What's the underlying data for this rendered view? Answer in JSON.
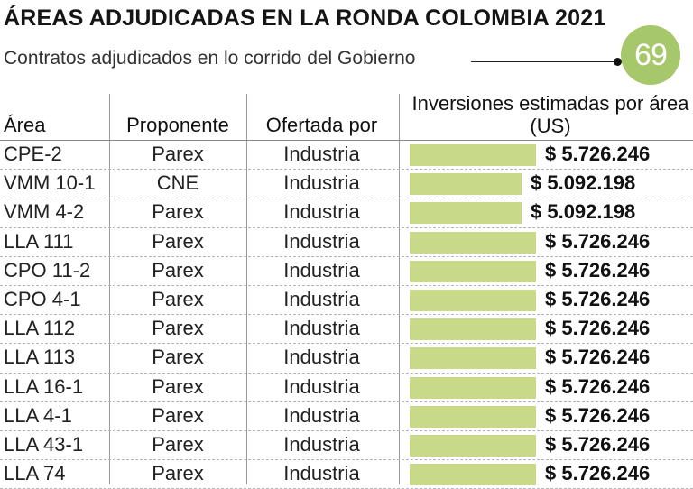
{
  "title": "ÁREAS ADJUDICADAS EN LA RONDA COLOMBIA 2021",
  "subtitle": "Contratos adjudicados en lo corrido del Gobierno",
  "badge_value": "69",
  "colors": {
    "bar": "#c8d98a",
    "badge": "#a6c86a"
  },
  "columns": {
    "area": "Área",
    "proponente": "Proponente",
    "ofertada_por": "Ofertada por",
    "inversiones": "Inversiones estimadas por área (US)"
  },
  "chart_data": {
    "type": "bar",
    "orientation": "horizontal",
    "title": "ÁREAS ADJUDICADAS EN LA RONDA COLOMBIA 2021",
    "subtitle": "Contratos adjudicados en lo corrido del Gobierno",
    "value_label": "Inversiones estimadas por área (US)",
    "categories": [
      "CPE-2",
      "VMM 10-1",
      "VMM 4-2",
      "LLA 111",
      "CPO 11-2",
      "CPO 4-1",
      "LLA 112",
      "LLA 113",
      "LLA 16-1",
      "LLA 4-1",
      "LLA 43-1",
      "LLA 74"
    ],
    "values": [
      5726246,
      5092198,
      5092198,
      5726246,
      5726246,
      5726246,
      5726246,
      5726246,
      5726246,
      5726246,
      5726246,
      5726246
    ],
    "value_labels": [
      "$ 5.726.246",
      "$ 5.092.198",
      "$ 5.092.198",
      "$ 5.726.246",
      "$ 5.726.246",
      "$ 5.726.246",
      "$ 5.726.246",
      "$ 5.726.246",
      "$ 5.726.246",
      "$ 5.726.246",
      "$ 5.726.246",
      "$ 5.726.246"
    ],
    "proponente": [
      "Parex",
      "CNE",
      "Parex",
      "Parex",
      "Parex",
      "Parex",
      "Parex",
      "Parex",
      "Parex",
      "Parex",
      "Parex",
      "Parex"
    ],
    "ofertada_por": [
      "Industria",
      "Industria",
      "Industria",
      "Industria",
      "Industria",
      "Industria",
      "Industria",
      "Industria",
      "Industria",
      "Industria",
      "Industria",
      "Industria"
    ]
  }
}
